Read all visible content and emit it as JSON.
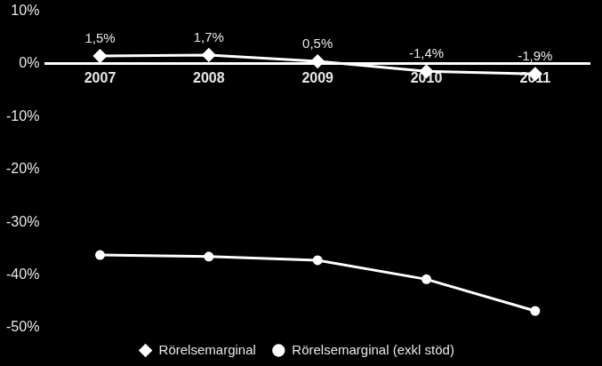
{
  "chart_data": {
    "type": "line",
    "categories": [
      "2007",
      "2008",
      "2009",
      "2010",
      "2011"
    ],
    "series": [
      {
        "name": "Rörelsemarginal",
        "color": "#ffffff",
        "marker": "diamond",
        "values": [
          1.5,
          1.7,
          0.5,
          -1.4,
          -1.9
        ],
        "data_labels": true,
        "value_labels": [
          "1,5%",
          "1,7%",
          "0,5%",
          "-1,4%",
          "-1,9%"
        ]
      },
      {
        "name": "Rörelsemarginal (exkl stöd)",
        "color": "#ffffff",
        "marker": "circle",
        "values": [
          -36.2,
          -36.5,
          -37.2,
          -40.8,
          -46.8
        ]
      }
    ],
    "ylim": [
      -50,
      10
    ],
    "yticks": [
      {
        "value": -50,
        "label": "-50%"
      },
      {
        "value": -40,
        "label": "-40%"
      },
      {
        "value": -30,
        "label": "-30%"
      },
      {
        "value": -20,
        "label": "-20%"
      },
      {
        "value": -10,
        "label": "-10%"
      },
      {
        "value": 0,
        "label": "0%"
      },
      {
        "value": 10,
        "label": "10%"
      }
    ],
    "grid": false,
    "legend": "bottom"
  }
}
